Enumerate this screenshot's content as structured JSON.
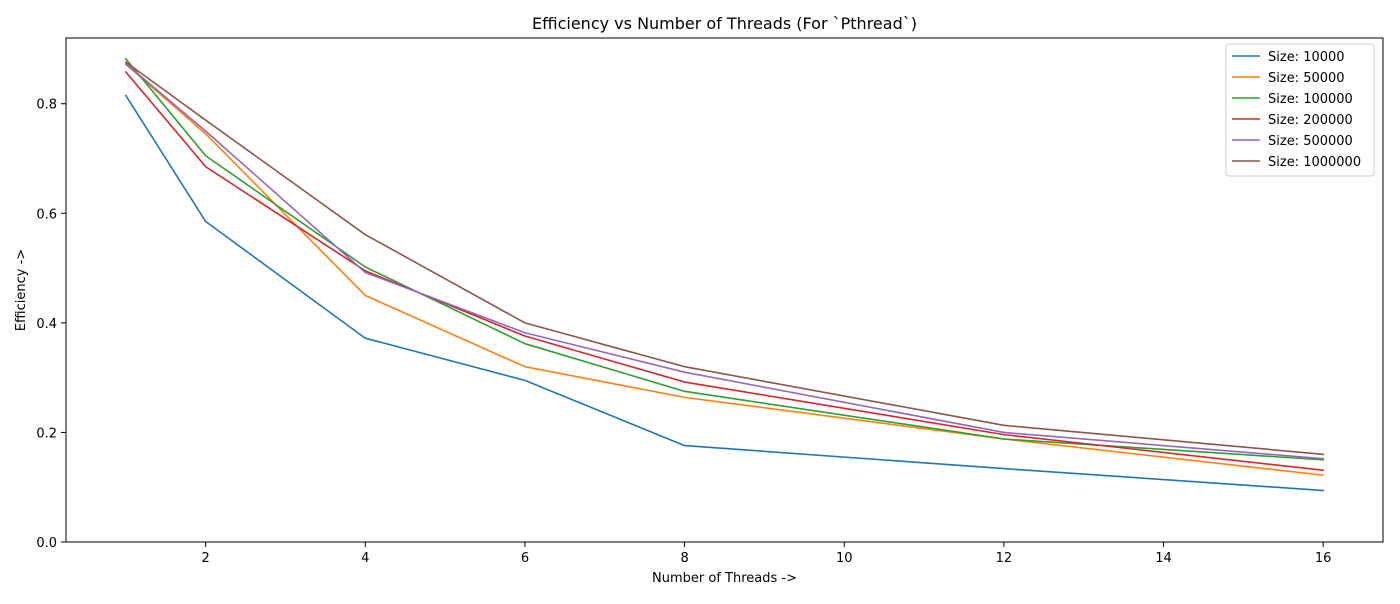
{
  "chart_data": {
    "type": "line",
    "title": "Efficiency vs Number of Threads (For `Pthread`)",
    "xlabel": "Number of Threads ->",
    "ylabel": "Efficiency ->",
    "x": [
      1,
      2,
      4,
      6,
      8,
      12,
      16
    ],
    "xlim": [
      0.25,
      16.75
    ],
    "ylim": [
      0.0,
      0.92
    ],
    "xticks": [
      2,
      4,
      6,
      8,
      10,
      12,
      14,
      16
    ],
    "yticks": [
      0.0,
      0.2,
      0.4,
      0.6,
      0.8
    ],
    "xtick_labels": [
      "2",
      "4",
      "6",
      "8",
      "10",
      "12",
      "14",
      "16"
    ],
    "ytick_labels": [
      "0.0",
      "0.2",
      "0.4",
      "0.6",
      "0.8"
    ],
    "grid": false,
    "legend_position": "top-right",
    "series": [
      {
        "name": "Size: 10000",
        "color": "#1f77b4",
        "values": [
          0.815,
          0.585,
          0.372,
          0.295,
          0.176,
          0.134,
          0.094
        ]
      },
      {
        "name": "Size: 50000",
        "color": "#ff7f0e",
        "values": [
          0.872,
          0.745,
          0.45,
          0.32,
          0.264,
          0.188,
          0.122
        ]
      },
      {
        "name": "Size: 100000",
        "color": "#2ca02c",
        "values": [
          0.882,
          0.705,
          0.502,
          0.362,
          0.275,
          0.188,
          0.15
        ]
      },
      {
        "name": "Size: 200000",
        "color": "#d62728",
        "values": [
          0.858,
          0.685,
          0.495,
          0.376,
          0.292,
          0.196,
          0.131
        ]
      },
      {
        "name": "Size: 500000",
        "color": "#9467bd",
        "values": [
          0.873,
          0.75,
          0.492,
          0.382,
          0.31,
          0.2,
          0.152
        ]
      },
      {
        "name": "Size: 1000000",
        "color": "#8c564b",
        "values": [
          0.876,
          0.77,
          0.561,
          0.4,
          0.32,
          0.213,
          0.16
        ]
      }
    ]
  }
}
